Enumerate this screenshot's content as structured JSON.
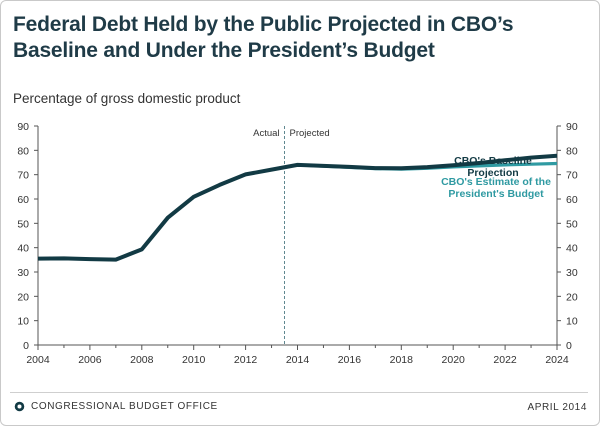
{
  "title": "Federal Debt Held by the Public Projected in CBO’s Baseline and Under the President’s Budget",
  "subtitle": "Percentage of gross domestic product",
  "footer": {
    "agency": "CONGRESSIONAL BUDGET OFFICE",
    "date": "APRIL 2014",
    "logo_icon": "cbo-seal-icon"
  },
  "chart_data": {
    "type": "line",
    "xlim": [
      2004,
      2024
    ],
    "ylim": [
      0,
      90
    ],
    "x_ticks": [
      2004,
      2006,
      2008,
      2010,
      2012,
      2014,
      2016,
      2018,
      2020,
      2022,
      2024
    ],
    "y_ticks": [
      0,
      10,
      20,
      30,
      40,
      50,
      60,
      70,
      80,
      90
    ],
    "divider": {
      "x": 2013.5,
      "left_label": "Actual",
      "right_label": "Projected"
    },
    "series": [
      {
        "name": "CBO's Baseline Projection",
        "color": "#123a44",
        "points": [
          [
            2004,
            35.5
          ],
          [
            2005,
            35.6
          ],
          [
            2006,
            35.3
          ],
          [
            2007,
            35.1
          ],
          [
            2008,
            39.3
          ],
          [
            2009,
            52.3
          ],
          [
            2010,
            60.9
          ],
          [
            2011,
            65.8
          ],
          [
            2012,
            70.1
          ],
          [
            2013,
            72.1
          ],
          [
            2014,
            74.0
          ],
          [
            2015,
            73.6
          ],
          [
            2016,
            73.2
          ],
          [
            2017,
            72.7
          ],
          [
            2018,
            72.6
          ],
          [
            2019,
            73.1
          ],
          [
            2020,
            73.9
          ],
          [
            2021,
            74.8
          ],
          [
            2022,
            75.9
          ],
          [
            2023,
            77.0
          ],
          [
            2024,
            77.8
          ]
        ]
      },
      {
        "name": "CBO's Estimate of the President's Budget",
        "color": "#2f9aa2",
        "points": [
          [
            2014,
            74.0
          ],
          [
            2015,
            73.5
          ],
          [
            2016,
            73.0
          ],
          [
            2017,
            72.5
          ],
          [
            2018,
            72.3
          ],
          [
            2019,
            72.6
          ],
          [
            2020,
            73.2
          ],
          [
            2021,
            73.6
          ],
          [
            2022,
            74.0
          ],
          [
            2023,
            74.3
          ],
          [
            2024,
            74.6
          ]
        ]
      }
    ],
    "annotations": [
      {
        "text_lines": [
          "CBO's Baseline",
          "Projection"
        ],
        "color": "#123a44"
      },
      {
        "text_lines": [
          "CBO's Estimate of the",
          "President's Budget"
        ],
        "color": "#2f9aa2"
      }
    ],
    "grid": false
  }
}
